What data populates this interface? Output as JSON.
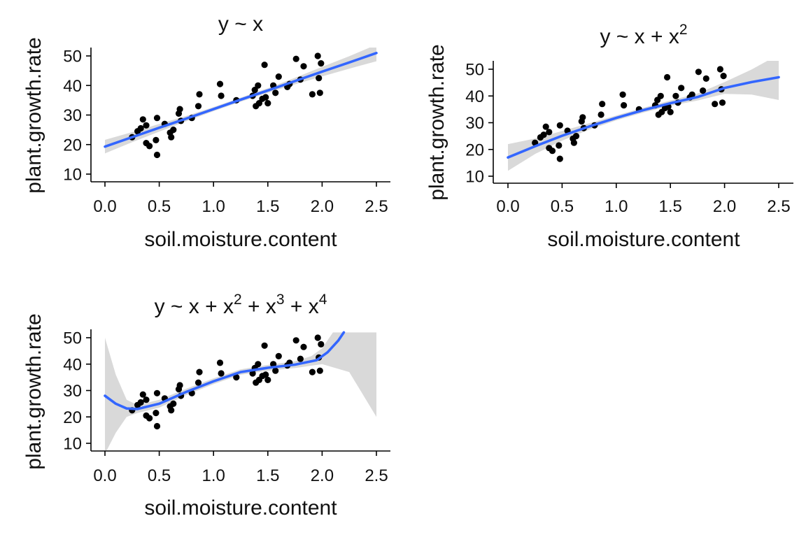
{
  "chart_data": [
    {
      "type": "scatter",
      "title": "y ~ x",
      "title_parts": [
        {
          "text": "y ~ x",
          "sup": ""
        }
      ],
      "xlabel": "soil.moisture.content",
      "ylabel": "plant.growth.rate",
      "xlim": [
        0.0,
        2.5
      ],
      "ylim": [
        10,
        50
      ],
      "xticks": [
        "0.0",
        "0.5",
        "1.0",
        "1.5",
        "2.0",
        "2.5"
      ],
      "yticks": [
        "10",
        "20",
        "30",
        "40",
        "50"
      ],
      "points": [
        [
          0.25,
          22.5
        ],
        [
          0.3,
          24.5
        ],
        [
          0.33,
          25.5
        ],
        [
          0.35,
          28.5
        ],
        [
          0.38,
          26.5
        ],
        [
          0.38,
          20.5
        ],
        [
          0.41,
          19.5
        ],
        [
          0.48,
          16.5
        ],
        [
          0.47,
          21.5
        ],
        [
          0.48,
          29.0
        ],
        [
          0.55,
          27.0
        ],
        [
          0.6,
          24.0
        ],
        [
          0.61,
          22.5
        ],
        [
          0.63,
          25.0
        ],
        [
          0.68,
          30.5
        ],
        [
          0.69,
          32.0
        ],
        [
          0.7,
          28.0
        ],
        [
          0.8,
          29.0
        ],
        [
          0.86,
          33.0
        ],
        [
          0.87,
          37.0
        ],
        [
          1.06,
          40.5
        ],
        [
          1.07,
          36.5
        ],
        [
          1.21,
          35.0
        ],
        [
          1.36,
          36.5
        ],
        [
          1.38,
          38.5
        ],
        [
          1.39,
          33.0
        ],
        [
          1.41,
          40.0
        ],
        [
          1.42,
          34.0
        ],
        [
          1.45,
          35.5
        ],
        [
          1.47,
          47.0
        ],
        [
          1.48,
          36.0
        ],
        [
          1.5,
          34.0
        ],
        [
          1.55,
          40.0
        ],
        [
          1.57,
          37.5
        ],
        [
          1.6,
          43.0
        ],
        [
          1.68,
          39.5
        ],
        [
          1.7,
          40.5
        ],
        [
          1.76,
          49.0
        ],
        [
          1.8,
          42.0
        ],
        [
          1.83,
          46.5
        ],
        [
          1.91,
          37.0
        ],
        [
          1.96,
          50.0
        ],
        [
          1.97,
          42.5
        ],
        [
          1.98,
          37.5
        ],
        [
          1.99,
          47.5
        ]
      ],
      "fit_line": [
        [
          0.0,
          19.3
        ],
        [
          0.25,
          22.5
        ],
        [
          0.5,
          25.7
        ],
        [
          0.75,
          28.8
        ],
        [
          1.0,
          32.0
        ],
        [
          1.25,
          35.2
        ],
        [
          1.5,
          38.3
        ],
        [
          1.75,
          41.5
        ],
        [
          2.0,
          44.7
        ],
        [
          2.25,
          47.8
        ],
        [
          2.5,
          51.0
        ]
      ],
      "ci_lower": [
        [
          0.0,
          17.0
        ],
        [
          0.25,
          20.8
        ],
        [
          0.5,
          24.4
        ],
        [
          0.75,
          27.9
        ],
        [
          1.0,
          31.3
        ],
        [
          1.25,
          34.5
        ],
        [
          1.5,
          37.5
        ],
        [
          1.75,
          40.4
        ],
        [
          2.0,
          43.1
        ],
        [
          2.25,
          45.7
        ],
        [
          2.5,
          48.2
        ]
      ],
      "ci_upper": [
        [
          0.0,
          21.6
        ],
        [
          0.25,
          24.2
        ],
        [
          0.5,
          27.0
        ],
        [
          0.75,
          29.7
        ],
        [
          1.0,
          32.7
        ],
        [
          1.25,
          35.9
        ],
        [
          1.5,
          39.1
        ],
        [
          1.75,
          42.6
        ],
        [
          2.0,
          46.3
        ],
        [
          2.25,
          49.9
        ],
        [
          2.5,
          53.8
        ]
      ],
      "colors": {
        "fit": "#3366FF",
        "ribbon": "#D9D9D9",
        "points": "#000000"
      }
    },
    {
      "type": "scatter",
      "title": "y ~ x + x^2",
      "title_parts": [
        {
          "text": "y ~ x + x",
          "sup": "2"
        }
      ],
      "xlabel": "soil.moisture.content",
      "ylabel": "plant.growth.rate",
      "xlim": [
        0.0,
        2.5
      ],
      "ylim": [
        10,
        50
      ],
      "xticks": [
        "0.0",
        "0.5",
        "1.0",
        "1.5",
        "2.0",
        "2.5"
      ],
      "yticks": [
        "10",
        "20",
        "30",
        "40",
        "50"
      ],
      "points": [
        [
          0.25,
          22.5
        ],
        [
          0.3,
          24.5
        ],
        [
          0.33,
          25.5
        ],
        [
          0.35,
          28.5
        ],
        [
          0.38,
          26.5
        ],
        [
          0.38,
          20.5
        ],
        [
          0.41,
          19.5
        ],
        [
          0.48,
          16.5
        ],
        [
          0.47,
          21.5
        ],
        [
          0.48,
          29.0
        ],
        [
          0.55,
          27.0
        ],
        [
          0.6,
          24.0
        ],
        [
          0.61,
          22.5
        ],
        [
          0.63,
          25.0
        ],
        [
          0.68,
          30.5
        ],
        [
          0.69,
          32.0
        ],
        [
          0.7,
          28.0
        ],
        [
          0.8,
          29.0
        ],
        [
          0.86,
          33.0
        ],
        [
          0.87,
          37.0
        ],
        [
          1.06,
          40.5
        ],
        [
          1.07,
          36.5
        ],
        [
          1.21,
          35.0
        ],
        [
          1.36,
          36.5
        ],
        [
          1.38,
          38.5
        ],
        [
          1.39,
          33.0
        ],
        [
          1.41,
          40.0
        ],
        [
          1.42,
          34.0
        ],
        [
          1.45,
          35.5
        ],
        [
          1.47,
          47.0
        ],
        [
          1.48,
          36.0
        ],
        [
          1.5,
          34.0
        ],
        [
          1.55,
          40.0
        ],
        [
          1.57,
          37.5
        ],
        [
          1.6,
          43.0
        ],
        [
          1.68,
          39.5
        ],
        [
          1.7,
          40.5
        ],
        [
          1.76,
          49.0
        ],
        [
          1.8,
          42.0
        ],
        [
          1.83,
          46.5
        ],
        [
          1.91,
          37.0
        ],
        [
          1.96,
          50.0
        ],
        [
          1.97,
          42.5
        ],
        [
          1.98,
          37.5
        ],
        [
          1.99,
          47.5
        ]
      ],
      "fit_line": [
        [
          0.0,
          17.0
        ],
        [
          0.25,
          21.2
        ],
        [
          0.5,
          25.1
        ],
        [
          0.75,
          28.6
        ],
        [
          1.0,
          31.8
        ],
        [
          1.25,
          34.7
        ],
        [
          1.5,
          37.3
        ],
        [
          1.75,
          39.6
        ],
        [
          2.0,
          43.0
        ],
        [
          2.25,
          45.2
        ],
        [
          2.5,
          47.0
        ]
      ],
      "ci_lower": [
        [
          0.0,
          12.0
        ],
        [
          0.25,
          18.3
        ],
        [
          0.5,
          23.3
        ],
        [
          0.75,
          27.4
        ],
        [
          1.0,
          30.9
        ],
        [
          1.25,
          33.8
        ],
        [
          1.5,
          36.3
        ],
        [
          1.75,
          38.3
        ],
        [
          2.0,
          40.8
        ],
        [
          2.25,
          40.5
        ],
        [
          2.5,
          38.5
        ]
      ],
      "ci_upper": [
        [
          0.0,
          22.0
        ],
        [
          0.25,
          24.1
        ],
        [
          0.5,
          26.9
        ],
        [
          0.75,
          29.8
        ],
        [
          1.0,
          32.7
        ],
        [
          1.25,
          35.6
        ],
        [
          1.5,
          38.3
        ],
        [
          1.75,
          40.9
        ],
        [
          2.0,
          45.2
        ],
        [
          2.25,
          49.9
        ],
        [
          2.5,
          55.5
        ]
      ],
      "colors": {
        "fit": "#3366FF",
        "ribbon": "#D9D9D9",
        "points": "#000000"
      }
    },
    {
      "type": "scatter",
      "title": "y ~ x + x^2 + x^3 + x^4",
      "title_parts": [
        {
          "text": "y ~ x + x",
          "sup": "2"
        },
        {
          "text": " + x",
          "sup": "3"
        },
        {
          "text": " + x",
          "sup": "4"
        }
      ],
      "xlabel": "soil.moisture.content",
      "ylabel": "plant.growth.rate",
      "xlim": [
        0.0,
        2.5
      ],
      "ylim": [
        10,
        50
      ],
      "xticks": [
        "0.0",
        "0.5",
        "1.0",
        "1.5",
        "2.0",
        "2.5"
      ],
      "yticks": [
        "10",
        "20",
        "30",
        "40",
        "50"
      ],
      "points": [
        [
          0.25,
          22.5
        ],
        [
          0.3,
          24.5
        ],
        [
          0.33,
          25.5
        ],
        [
          0.35,
          28.5
        ],
        [
          0.38,
          26.5
        ],
        [
          0.38,
          20.5
        ],
        [
          0.41,
          19.5
        ],
        [
          0.48,
          16.5
        ],
        [
          0.47,
          21.5
        ],
        [
          0.48,
          29.0
        ],
        [
          0.55,
          27.0
        ],
        [
          0.6,
          24.0
        ],
        [
          0.61,
          22.5
        ],
        [
          0.63,
          25.0
        ],
        [
          0.68,
          30.5
        ],
        [
          0.69,
          32.0
        ],
        [
          0.7,
          28.0
        ],
        [
          0.8,
          29.0
        ],
        [
          0.86,
          33.0
        ],
        [
          0.87,
          37.0
        ],
        [
          1.06,
          40.5
        ],
        [
          1.07,
          36.5
        ],
        [
          1.21,
          35.0
        ],
        [
          1.36,
          36.5
        ],
        [
          1.38,
          38.5
        ],
        [
          1.39,
          33.0
        ],
        [
          1.41,
          40.0
        ],
        [
          1.42,
          34.0
        ],
        [
          1.45,
          35.5
        ],
        [
          1.47,
          47.0
        ],
        [
          1.48,
          36.0
        ],
        [
          1.5,
          34.0
        ],
        [
          1.55,
          40.0
        ],
        [
          1.57,
          37.5
        ],
        [
          1.6,
          43.0
        ],
        [
          1.68,
          39.5
        ],
        [
          1.7,
          40.5
        ],
        [
          1.76,
          49.0
        ],
        [
          1.8,
          42.0
        ],
        [
          1.83,
          46.5
        ],
        [
          1.91,
          37.0
        ],
        [
          1.96,
          50.0
        ],
        [
          1.97,
          42.5
        ],
        [
          1.98,
          37.5
        ],
        [
          1.99,
          47.5
        ]
      ],
      "fit_line": [
        [
          0.0,
          28.0
        ],
        [
          0.1,
          25.0
        ],
        [
          0.2,
          23.2
        ],
        [
          0.3,
          23.0
        ],
        [
          0.5,
          25.0
        ],
        [
          0.75,
          29.5
        ],
        [
          1.0,
          33.5
        ],
        [
          1.25,
          37.0
        ],
        [
          1.5,
          38.6
        ],
        [
          1.75,
          39.8
        ],
        [
          1.95,
          41.5
        ],
        [
          2.05,
          44.5
        ],
        [
          2.15,
          49.0
        ],
        [
          2.2,
          52.0
        ]
      ],
      "ci_lower": [
        [
          0.0,
          6.0
        ],
        [
          0.1,
          14.0
        ],
        [
          0.2,
          20.0
        ],
        [
          0.3,
          21.5
        ],
        [
          0.5,
          23.5
        ],
        [
          0.75,
          28.3
        ],
        [
          1.0,
          32.4
        ],
        [
          1.25,
          36.0
        ],
        [
          1.5,
          37.5
        ],
        [
          1.75,
          38.5
        ],
        [
          2.0,
          40.0
        ],
        [
          2.25,
          37.0
        ],
        [
          2.5,
          20.0
        ]
      ],
      "ci_upper": [
        [
          0.0,
          50.0
        ],
        [
          0.1,
          36.0
        ],
        [
          0.2,
          26.5
        ],
        [
          0.3,
          24.5
        ],
        [
          0.5,
          26.5
        ],
        [
          0.75,
          30.7
        ],
        [
          1.0,
          34.6
        ],
        [
          1.25,
          38.0
        ],
        [
          1.5,
          39.7
        ],
        [
          1.75,
          41.1
        ],
        [
          1.9,
          43.0
        ],
        [
          2.0,
          46.0
        ],
        [
          2.1,
          52.0
        ],
        [
          2.5,
          52.0
        ]
      ],
      "colors": {
        "fit": "#3366FF",
        "ribbon": "#D9D9D9",
        "points": "#000000"
      }
    }
  ]
}
